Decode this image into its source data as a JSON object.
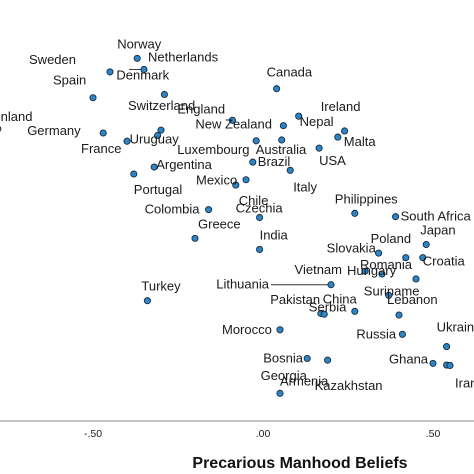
{
  "chart_data": {
    "type": "scatter",
    "xlabel": "Precarious Manhood Beliefs",
    "xlim": [
      -0.8,
      0.6
    ],
    "ylim": [
      0,
      1
    ],
    "grid": false,
    "x_ticks": [
      {
        "value": -0.5,
        "label": "-.50"
      },
      {
        "value": 0.0,
        "label": ".00"
      },
      {
        "value": 0.5,
        "label": ".50"
      }
    ],
    "points": [
      {
        "label": "Norway",
        "x": -0.37,
        "y": 0.882
      },
      {
        "label": "Netherlands",
        "x": -0.35,
        "y": 0.855
      },
      {
        "label": "Sweden",
        "x": -0.45,
        "y": 0.849
      },
      {
        "label": "Canada",
        "x": 0.04,
        "y": 0.808
      },
      {
        "label": "Denmark",
        "x": -0.29,
        "y": 0.794
      },
      {
        "label": "Spain",
        "x": -0.5,
        "y": 0.786
      },
      {
        "label": "Ireland",
        "x": 0.105,
        "y": 0.741
      },
      {
        "label": "England",
        "x": -0.09,
        "y": 0.731
      },
      {
        "label": "Finland",
        "x": -0.78,
        "y": 0.71
      },
      {
        "label": "New Zealand",
        "x": 0.06,
        "y": 0.718
      },
      {
        "label": "Nepal",
        "x": 0.24,
        "y": 0.705
      },
      {
        "label": "Switzerland",
        "x": -0.3,
        "y": 0.707
      },
      {
        "label": "Germany",
        "x": -0.47,
        "y": 0.7
      },
      {
        "label": "Malta",
        "x": 0.22,
        "y": 0.69
      },
      {
        "label": "Uruguay",
        "x": -0.31,
        "y": 0.694
      },
      {
        "label": "France",
        "x": -0.4,
        "y": 0.68
      },
      {
        "label": "Australia",
        "x": 0.055,
        "y": 0.683
      },
      {
        "label": "Luxembourg",
        "x": -0.02,
        "y": 0.681
      },
      {
        "label": "USA",
        "x": 0.165,
        "y": 0.663
      },
      {
        "label": "Brazil",
        "x": -0.03,
        "y": 0.629
      },
      {
        "label": "Argentina",
        "x": -0.32,
        "y": 0.617
      },
      {
        "label": "Italy",
        "x": 0.08,
        "y": 0.609
      },
      {
        "label": "Portugal",
        "x": -0.38,
        "y": 0.6
      },
      {
        "label": "Mexico",
        "x": -0.05,
        "y": 0.586
      },
      {
        "label": "Chile",
        "x": -0.08,
        "y": 0.573
      },
      {
        "label": "Philippines",
        "x": 0.27,
        "y": 0.504
      },
      {
        "label": "Colombia",
        "x": -0.16,
        "y": 0.513
      },
      {
        "label": "South Africa",
        "x": 0.39,
        "y": 0.496
      },
      {
        "label": "Czechia",
        "x": -0.01,
        "y": 0.494
      },
      {
        "label": "Greece",
        "x": -0.2,
        "y": 0.443
      },
      {
        "label": "India",
        "x": -0.01,
        "y": 0.416
      },
      {
        "label": "Japan",
        "x": 0.48,
        "y": 0.428
      },
      {
        "label": "Poland",
        "x": 0.34,
        "y": 0.407
      },
      {
        "label": "Slovakia",
        "x": 0.42,
        "y": 0.396
      },
      {
        "label": "Croatia",
        "x": 0.47,
        "y": 0.396
      },
      {
        "label": "Hungary",
        "x": 0.3,
        "y": 0.363
      },
      {
        "label": "Romania",
        "x": 0.45,
        "y": 0.344
      },
      {
        "label": "Vietnam",
        "x": 0.35,
        "y": 0.356
      },
      {
        "label": "Lithuania",
        "x": 0.2,
        "y": 0.33
      },
      {
        "label": "Suriname",
        "x": 0.37,
        "y": 0.304
      },
      {
        "label": "Turkey",
        "x": -0.34,
        "y": 0.291
      },
      {
        "label": "Lebanon",
        "x": 0.4,
        "y": 0.256
      },
      {
        "label": "China",
        "x": 0.17,
        "y": 0.26
      },
      {
        "label": "Pakistan",
        "x": 0.18,
        "y": 0.258
      },
      {
        "label": "Serbia",
        "x": 0.27,
        "y": 0.265
      },
      {
        "label": "Morocco",
        "x": 0.05,
        "y": 0.22
      },
      {
        "label": "Russia",
        "x": 0.41,
        "y": 0.209
      },
      {
        "label": "Ukraine",
        "x": 0.54,
        "y": 0.179
      },
      {
        "label": "Ghana",
        "x": 0.5,
        "y": 0.138
      },
      {
        "label": "Bosnia",
        "x": 0.13,
        "y": 0.15
      },
      {
        "label": "Georgia",
        "x": 0.19,
        "y": 0.146
      },
      {
        "label": "Kazakhstan",
        "x": 0.54,
        "y": 0.134
      },
      {
        "label": "Iran",
        "x": 0.55,
        "y": 0.133
      },
      {
        "label": "Armenia",
        "x": 0.05,
        "y": 0.065
      }
    ]
  }
}
